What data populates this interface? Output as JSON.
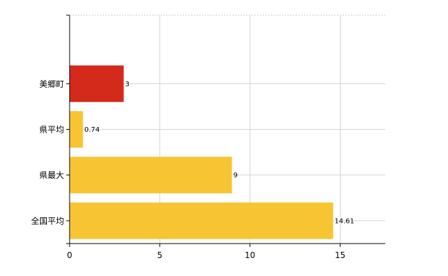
{
  "chart_data": {
    "type": "bar",
    "orientation": "horizontal",
    "categories": [
      "美郷町",
      "県平均",
      "県最大",
      "全国平均"
    ],
    "values": [
      3,
      0.74,
      9,
      14.61
    ],
    "data_labels": [
      "3",
      "0.74",
      "9",
      "14.61"
    ],
    "bar_colors": [
      "#d42a1c",
      "#f7c534",
      "#f7c534",
      "#f7c534"
    ],
    "xlim": [
      0,
      17.5
    ],
    "xticks": [
      0,
      5,
      10,
      15
    ],
    "xtick_labels": [
      "0",
      "5",
      "10",
      "15"
    ],
    "grid": true,
    "title": "",
    "xlabel": "",
    "ylabel": ""
  }
}
